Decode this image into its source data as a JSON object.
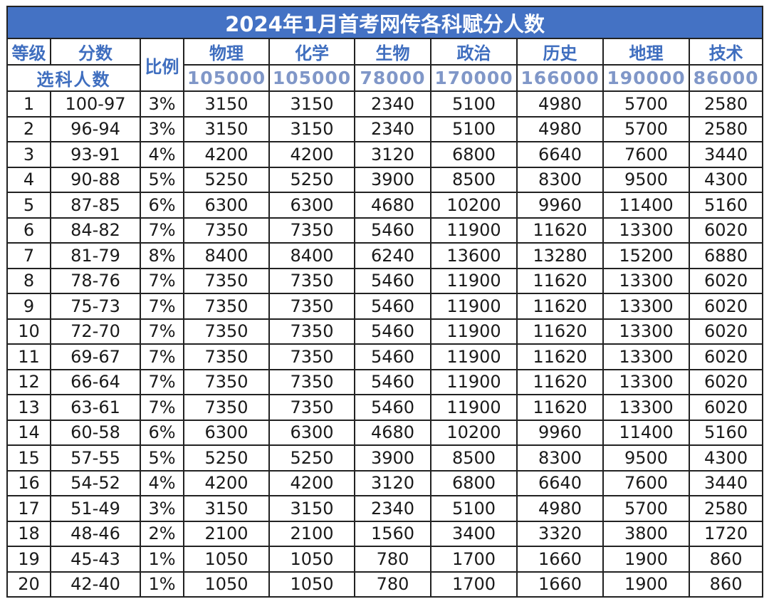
{
  "title": "2024年1月首考网传各科赋分人数",
  "headers": {
    "grade": "等级",
    "score": "分数",
    "ratio": "比例",
    "selection": "选科人数",
    "subjects": [
      "物理",
      "化学",
      "生物",
      "政治",
      "历史",
      "地理",
      "技术"
    ],
    "counts": [
      "105000",
      "105000",
      "78000",
      "170000",
      "166000",
      "190000",
      "86000"
    ]
  },
  "rows": [
    [
      "1",
      "100-97",
      "3%",
      "3150",
      "3150",
      "2340",
      "5100",
      "4980",
      "5700",
      "2580"
    ],
    [
      "2",
      "96-94",
      "3%",
      "3150",
      "3150",
      "2340",
      "5100",
      "4980",
      "5700",
      "2580"
    ],
    [
      "3",
      "93-91",
      "4%",
      "4200",
      "4200",
      "3120",
      "6800",
      "6640",
      "7600",
      "3440"
    ],
    [
      "4",
      "90-88",
      "5%",
      "5250",
      "5250",
      "3900",
      "8500",
      "8300",
      "9500",
      "4300"
    ],
    [
      "5",
      "87-85",
      "6%",
      "6300",
      "6300",
      "4680",
      "10200",
      "9960",
      "11400",
      "5160"
    ],
    [
      "6",
      "84-82",
      "7%",
      "7350",
      "7350",
      "5460",
      "11900",
      "11620",
      "13300",
      "6020"
    ],
    [
      "7",
      "81-79",
      "8%",
      "8400",
      "8400",
      "6240",
      "13600",
      "13280",
      "15200",
      "6880"
    ],
    [
      "8",
      "78-76",
      "7%",
      "7350",
      "7350",
      "5460",
      "11900",
      "11620",
      "13300",
      "6020"
    ],
    [
      "9",
      "75-73",
      "7%",
      "7350",
      "7350",
      "5460",
      "11900",
      "11620",
      "13300",
      "6020"
    ],
    [
      "10",
      "72-70",
      "7%",
      "7350",
      "7350",
      "5460",
      "11900",
      "11620",
      "13300",
      "6020"
    ],
    [
      "11",
      "69-67",
      "7%",
      "7350",
      "7350",
      "5460",
      "11900",
      "11620",
      "13300",
      "6020"
    ],
    [
      "12",
      "66-64",
      "7%",
      "7350",
      "7350",
      "5460",
      "11900",
      "11620",
      "13300",
      "6020"
    ],
    [
      "13",
      "63-61",
      "7%",
      "7350",
      "7350",
      "5460",
      "11900",
      "11620",
      "13300",
      "6020"
    ],
    [
      "14",
      "60-58",
      "6%",
      "6300",
      "6300",
      "4680",
      "10200",
      "9960",
      "11400",
      "5160"
    ],
    [
      "15",
      "57-55",
      "5%",
      "5250",
      "5250",
      "3900",
      "8500",
      "8300",
      "9500",
      "4300"
    ],
    [
      "16",
      "54-52",
      "4%",
      "4200",
      "4200",
      "3120",
      "6800",
      "6640",
      "7600",
      "3440"
    ],
    [
      "17",
      "51-49",
      "3%",
      "3150",
      "3150",
      "2340",
      "5100",
      "4980",
      "5700",
      "2580"
    ],
    [
      "18",
      "48-46",
      "2%",
      "2100",
      "2100",
      "1560",
      "3400",
      "3320",
      "3800",
      "1720"
    ],
    [
      "19",
      "45-43",
      "1%",
      "1050",
      "1050",
      "780",
      "1700",
      "1660",
      "1900",
      "860"
    ],
    [
      "20",
      "42-40",
      "1%",
      "1050",
      "1050",
      "780",
      "1700",
      "1660",
      "1900",
      "860"
    ]
  ],
  "colors": {
    "title_bg": "#4472c4",
    "title_text": "#ffffff",
    "header_text": "#3f6ebf",
    "count_text": "#8097c8"
  }
}
